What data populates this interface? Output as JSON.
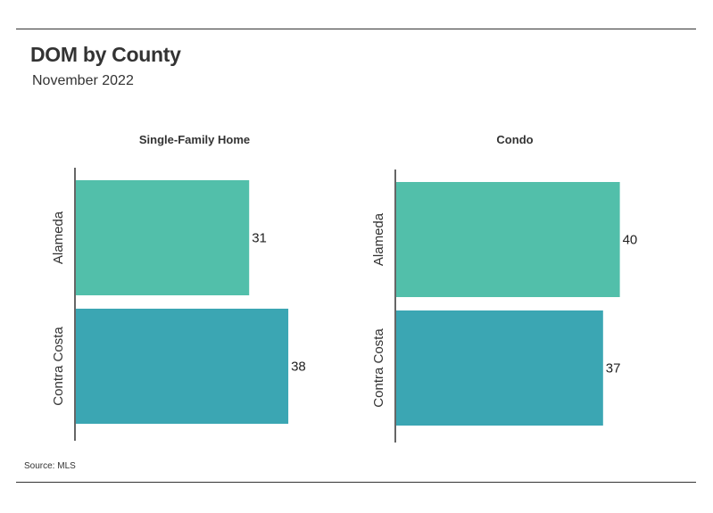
{
  "header": {
    "title": "DOM by County",
    "subtitle": "November 2022"
  },
  "footer": {
    "source": "Source:  MLS"
  },
  "colors": {
    "alameda": "#52bfaa",
    "contra_costa": "#3ba6b3",
    "axis": "#333333"
  },
  "chart_data": [
    {
      "type": "bar",
      "orientation": "horizontal",
      "title": "Single-Family Home",
      "categories": [
        "Alameda",
        "Contra Costa"
      ],
      "values": [
        31,
        38
      ],
      "xlim": [
        0,
        41.5
      ]
    },
    {
      "type": "bar",
      "orientation": "horizontal",
      "title": "Condo",
      "categories": [
        "Alameda",
        "Contra Costa"
      ],
      "values": [
        40,
        37
      ],
      "xlim": [
        0,
        41.5
      ]
    }
  ]
}
